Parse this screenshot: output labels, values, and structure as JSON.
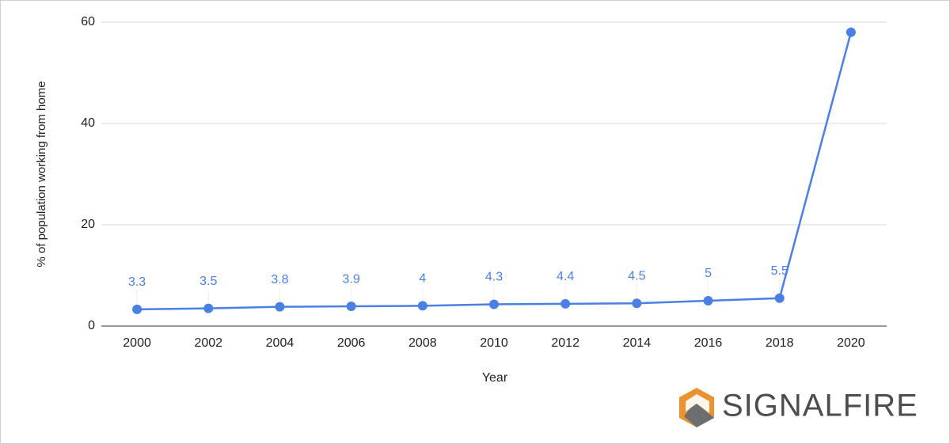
{
  "chart_data": {
    "type": "line",
    "x_label": "Year",
    "y_label": "% of population working from home",
    "categories": [
      "2000",
      "2002",
      "2004",
      "2006",
      "2008",
      "2010",
      "2012",
      "2014",
      "2016",
      "2018",
      "2020"
    ],
    "values": [
      3.3,
      3.5,
      3.8,
      3.9,
      4,
      4.3,
      4.4,
      4.5,
      5,
      5.5,
      58
    ],
    "value_labels": [
      "3.3",
      "3.5",
      "3.8",
      "3.9",
      "4",
      "4.3",
      "4.4",
      "4.5",
      "5",
      "5.5",
      null
    ],
    "color": "#4a7fe3",
    "ylim": [
      0,
      60
    ],
    "yticks": [
      0,
      20,
      40,
      60
    ],
    "grid": true
  },
  "logo": {
    "text": "SIGNALFIRE"
  }
}
